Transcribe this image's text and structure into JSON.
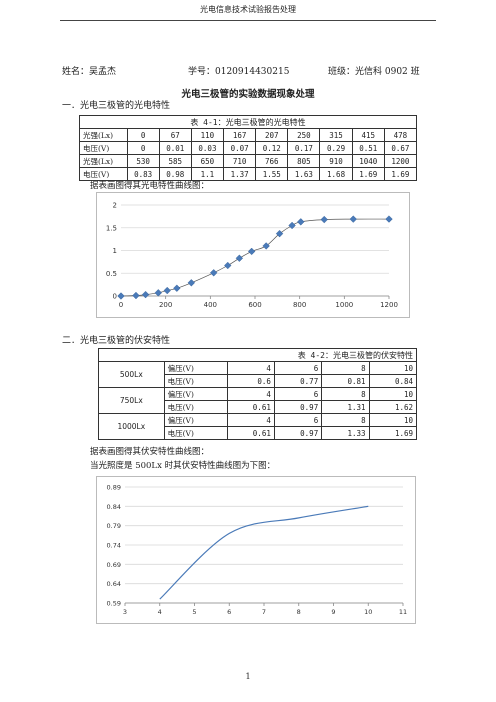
{
  "header": {
    "title": "光电信息技术试验报告处理"
  },
  "student": {
    "name": "姓名：吴孟杰",
    "id": "学号：0120914430215",
    "class": "班级：光信科 0902 班"
  },
  "doc_title": "光电三极管的实验数据现象处理",
  "section1": {
    "heading": "一．光电三极管的光电特性",
    "table_caption": "表 4-1：光电三极管的光电特性",
    "rows": [
      {
        "label": "光强(Lx)",
        "cells": [
          "0",
          "67",
          "110",
          "167",
          "207",
          "250",
          "315",
          "415",
          "478"
        ]
      },
      {
        "label": "电压(V)",
        "cells": [
          "0",
          "0.01",
          "0.03",
          "0.07",
          "0.12",
          "0.17",
          "0.29",
          "0.51",
          "0.67"
        ]
      },
      {
        "label": "光强(Lx)",
        "cells": [
          "530",
          "585",
          "650",
          "710",
          "766",
          "805",
          "910",
          "1040",
          "1200"
        ]
      },
      {
        "label": "电压(V)",
        "cells": [
          "0.83",
          "0.98",
          "1.1",
          "1.37",
          "1.55",
          "1.63",
          "1.68",
          "1.69",
          "1.69"
        ]
      }
    ],
    "note": "据表画图得其光电特性曲线图："
  },
  "section2": {
    "heading": "二．光电三极管的伏安特性",
    "table_caption": "表 4-2：光电三极管的伏安特性",
    "groups": [
      {
        "label": "500Lx",
        "rows": [
          {
            "label": "偏压(V)",
            "cells": [
              "4",
              "6",
              "8",
              "10"
            ]
          },
          {
            "label": "电压(V)",
            "cells": [
              "0.6",
              "0.77",
              "0.81",
              "0.84"
            ]
          }
        ]
      },
      {
        "label": "750Lx",
        "rows": [
          {
            "label": "偏压(V)",
            "cells": [
              "4",
              "6",
              "8",
              "10"
            ]
          },
          {
            "label": "电压(V)",
            "cells": [
              "0.61",
              "0.97",
              "1.31",
              "1.62"
            ]
          }
        ]
      },
      {
        "label": "1000Lx",
        "rows": [
          {
            "label": "偏压(V)",
            "cells": [
              "4",
              "6",
              "8",
              "10"
            ]
          },
          {
            "label": "电压(V)",
            "cells": [
              "0.61",
              "0.97",
              "1.33",
              "1.69"
            ]
          }
        ]
      }
    ],
    "note1": "据表画图得其伏安特性曲线图：",
    "note2": "当光照度是 500Lx 时其伏安特性曲线图为下图："
  },
  "page_number": "1",
  "chart_data": [
    {
      "type": "scatter",
      "x": [
        0,
        67,
        110,
        167,
        207,
        250,
        315,
        415,
        478,
        530,
        585,
        650,
        710,
        766,
        805,
        910,
        1040,
        1200
      ],
      "y": [
        0,
        0.01,
        0.03,
        0.07,
        0.12,
        0.17,
        0.29,
        0.51,
        0.67,
        0.83,
        0.98,
        1.1,
        1.37,
        1.55,
        1.63,
        1.68,
        1.69,
        1.69
      ],
      "trendline": true,
      "xlim": [
        0,
        1200
      ],
      "ylim": [
        0,
        2
      ],
      "xticks": [
        "0",
        "200",
        "400",
        "600",
        "800",
        "1000",
        "1200"
      ],
      "yticks": [
        "0",
        "0.5",
        "1",
        "1.5",
        "2"
      ],
      "grid": "horizontal",
      "marker_color": "#4a7ab8",
      "line_color": "#555555"
    },
    {
      "type": "line",
      "x": [
        4,
        6,
        8,
        10
      ],
      "y": [
        0.6,
        0.77,
        0.81,
        0.84
      ],
      "xlim": [
        3,
        11
      ],
      "ylim": [
        0.59,
        0.89
      ],
      "xticks": [
        "3",
        "4",
        "5",
        "6",
        "7",
        "8",
        "9",
        "10",
        "11"
      ],
      "yticks": [
        "0.59",
        "0.64",
        "0.69",
        "0.74",
        "0.79",
        "0.84",
        "0.89"
      ],
      "grid": "horizontal",
      "line_color": "#4a7ab8"
    }
  ]
}
